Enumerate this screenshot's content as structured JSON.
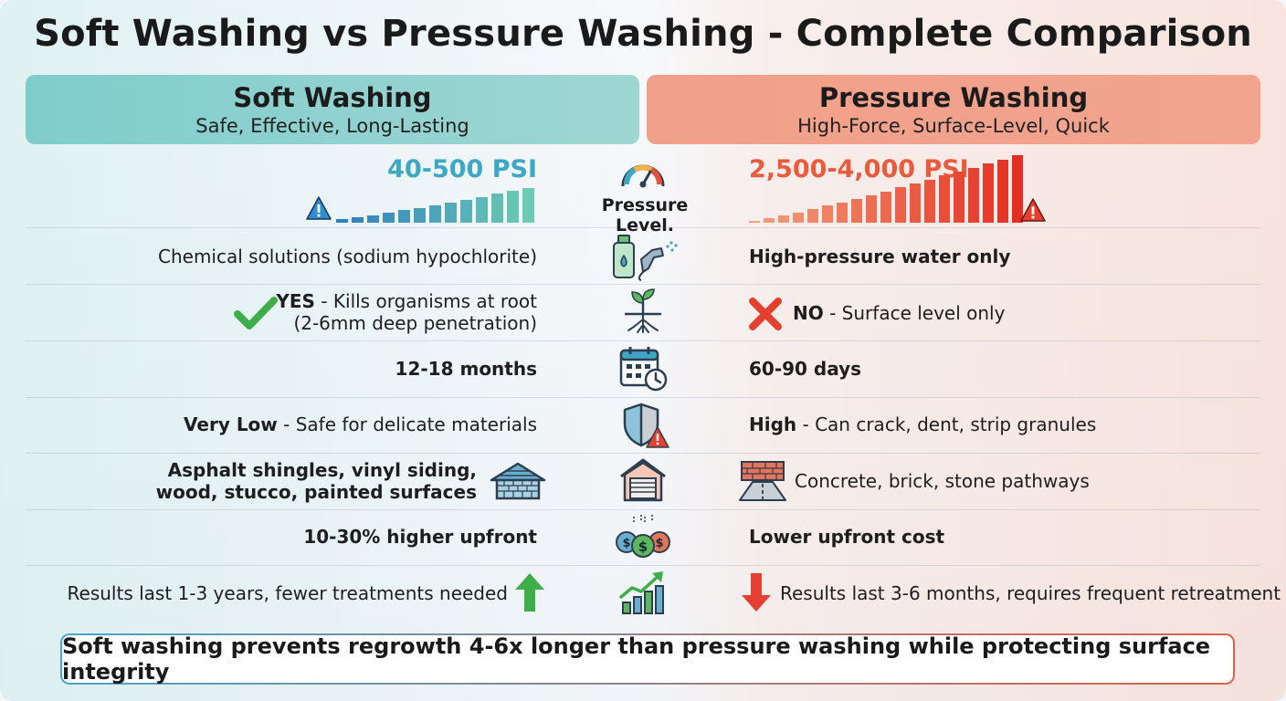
{
  "title": "Soft Washing vs Pressure Washing - Complete Comparison",
  "soft": {
    "title": "Soft Washing",
    "subtitle": "Safe, Effective, Long-Lasting",
    "psi": "40-500 PSI",
    "color": "#3ea7c6"
  },
  "pressure": {
    "title": "Pressure Washing",
    "subtitle": "High-Force, Surface-Level, Quick",
    "psi": "2,500-4,000 PSI",
    "color": "#ec5a3c"
  },
  "pressure_label": "Pressure Level.",
  "rows": [
    {
      "icon": "chemical-sprayer-icon",
      "left": "Chemical solutions (sodium hypochlorite)",
      "right": "High-pressure water only"
    },
    {
      "icon": "plant-roots-icon",
      "left_bold": "YES",
      "left_rest": " - Kills organisms at root",
      "left_line2": "(2-6mm deep penetration)",
      "right_bold": "NO",
      "right_rest": " - Surface level only"
    },
    {
      "icon": "calendar-clock-icon",
      "left": "12-18 months",
      "right": "60-90 days"
    },
    {
      "icon": "shield-warning-icon",
      "left_bold": "Very Low",
      "left_rest": " - Safe for delicate materials",
      "right_bold": "High",
      "right_rest": " - Can crack, dent, strip granules"
    },
    {
      "icon": "house-siding-icon",
      "left_line1": "Asphalt shingles, vinyl siding,",
      "left_line2": "wood, stucco, painted surfaces",
      "right": "Concrete, brick, stone pathways"
    },
    {
      "icon": "coins-icon",
      "left": "10-30% higher upfront",
      "right": "Lower upfront cost"
    },
    {
      "icon": "growth-chart-icon",
      "left": "Results last 1-3 years, fewer treatments needed",
      "right": "Results last 3-6 months, requires frequent retreatment"
    }
  ],
  "footer": "Soft washing prevents regrowth 4-6x longer than pressure washing while protecting surface integrity"
}
